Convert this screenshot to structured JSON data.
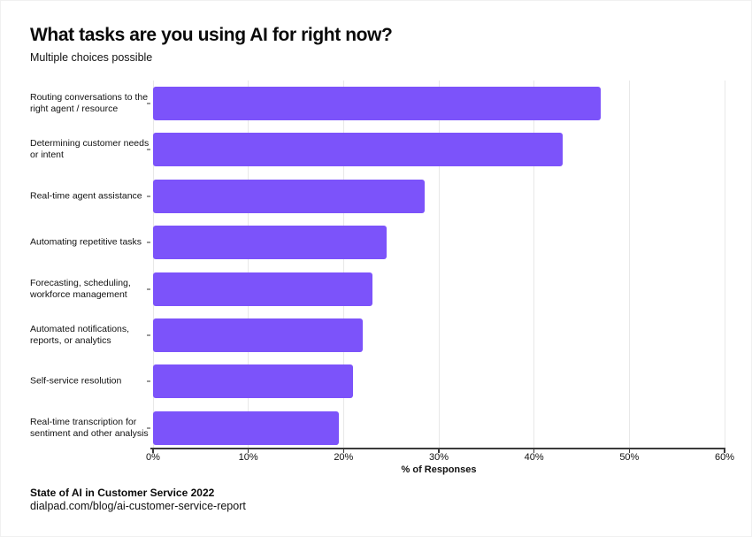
{
  "page": {
    "title": "What tasks are you using AI for right now?",
    "subtitle": "Multiple choices possible",
    "footer": {
      "source": "State of AI in Customer Service 2022",
      "url": "dialpad.com/blog/ai-customer-service-report"
    }
  },
  "chart_data": {
    "type": "bar",
    "orientation": "horizontal",
    "title": "What tasks are you using AI for right now?",
    "subtitle": "Multiple choices possible",
    "categories": [
      "Routing conversations to the right agent / resource",
      "Determining customer needs or intent",
      "Real-time agent assistance",
      "Automating repetitive tasks",
      "Forecasting, scheduling, workforce management",
      "Automated notifications, reports, or analytics",
      "Self-service resolution",
      "Real-time transcription for sentiment and other analysis"
    ],
    "category_label_lines": [
      [
        "Routing conversations to the",
        "right agent / resource"
      ],
      [
        "Determining customer needs",
        "or intent"
      ],
      [
        "Real-time agent assistance"
      ],
      [
        "Automating repetitive tasks"
      ],
      [
        "Forecasting, scheduling,",
        "workforce management"
      ],
      [
        "Automated notifications,",
        "reports, or analytics"
      ],
      [
        "Self-service resolution"
      ],
      [
        "Real-time transcription for",
        "sentiment and other analysis"
      ]
    ],
    "values": [
      47,
      43,
      28.5,
      24.5,
      23,
      22,
      21,
      19.5
    ],
    "xlabel": "% of Responses",
    "xlim": [
      0,
      60
    ],
    "xtick_values": [
      0,
      10,
      20,
      30,
      40,
      50,
      60
    ],
    "xtick_labels": [
      "0%",
      "10%",
      "20%",
      "30%",
      "40%",
      "50%",
      "60%"
    ],
    "grid": "vertical",
    "legend": "none",
    "bar_color": "#7C53FA",
    "axis_color": "#3B3B3B",
    "grid_color": "#E8E8E8",
    "tick_color": "#9A9A9A"
  }
}
